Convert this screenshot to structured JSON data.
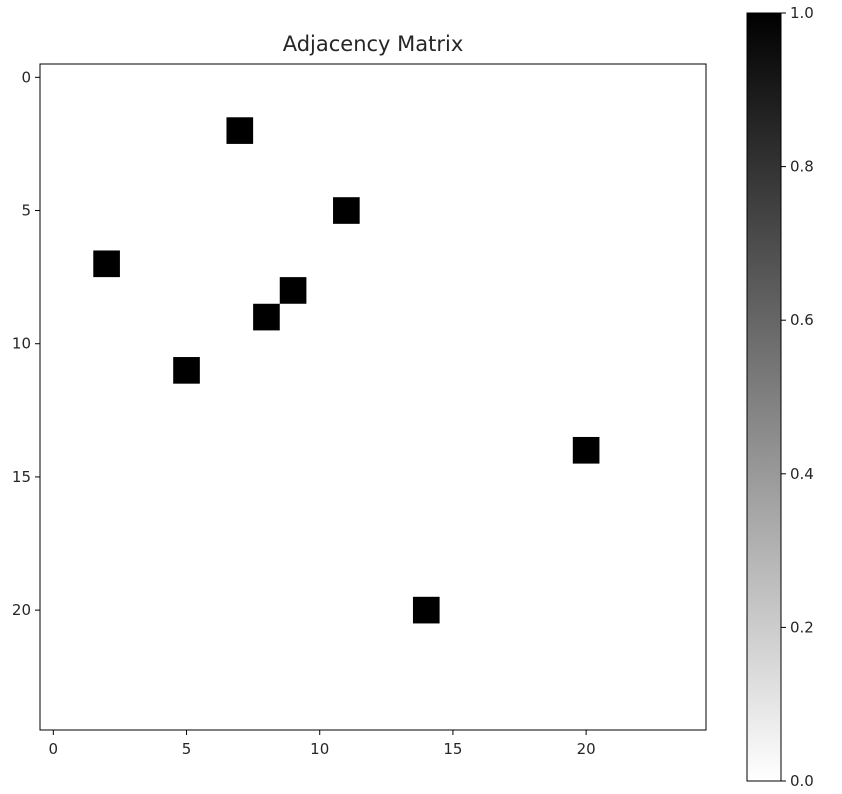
{
  "chart_data": {
    "type": "heatmap",
    "title": "Adjacency Matrix",
    "xlabel": "",
    "ylabel": "",
    "matrix_size": 25,
    "x_range": [
      -0.5,
      24.5
    ],
    "y_range": [
      -0.5,
      24.5
    ],
    "y_inverted": true,
    "x_ticks": [
      0,
      5,
      10,
      15,
      20
    ],
    "y_ticks": [
      0,
      5,
      10,
      15,
      20
    ],
    "grid": false,
    "default_value": 0,
    "cells": [
      {
        "row": 2,
        "col": 7,
        "value": 1
      },
      {
        "row": 5,
        "col": 11,
        "value": 1
      },
      {
        "row": 7,
        "col": 2,
        "value": 1
      },
      {
        "row": 8,
        "col": 9,
        "value": 1
      },
      {
        "row": 9,
        "col": 8,
        "value": 1
      },
      {
        "row": 11,
        "col": 5,
        "value": 1
      },
      {
        "row": 14,
        "col": 20,
        "value": 1
      },
      {
        "row": 20,
        "col": 14,
        "value": 1
      }
    ],
    "colorbar": {
      "colormap": "gray_r",
      "min": 0.0,
      "max": 1.0,
      "ticks": [
        "0.0",
        "0.2",
        "0.4",
        "0.6",
        "0.8",
        "1.0"
      ],
      "color_low": "#ffffff",
      "color_high": "#000000",
      "placement": "right"
    }
  }
}
